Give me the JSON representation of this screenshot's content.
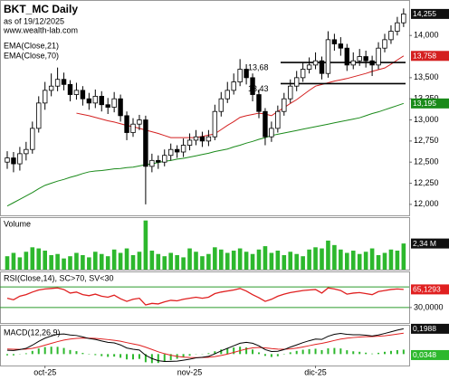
{
  "chart_data": [
    {
      "type": "candlestick",
      "title": "BKT_MC Daily",
      "subtitle": "as of 19/12/2025",
      "source": "www.wealth-lab.com",
      "categories": [
        null,
        null,
        null,
        null,
        null,
        null,
        "oct-25",
        null,
        null,
        null,
        null,
        null,
        null,
        null,
        null,
        null,
        null,
        null,
        null,
        null,
        null,
        null,
        null,
        null,
        null,
        null,
        null,
        null,
        null,
        "nov-25",
        null,
        null,
        null,
        null,
        null,
        null,
        null,
        null,
        null,
        null,
        null,
        null,
        null,
        null,
        null,
        null,
        null,
        null,
        null,
        "dic-25",
        null,
        null,
        null,
        null,
        null,
        null,
        null,
        null,
        null,
        null,
        null,
        null,
        null,
        null
      ],
      "candles": {
        "open": [
          12.5,
          12.55,
          12.48,
          12.6,
          12.65,
          12.9,
          13.2,
          13.35,
          13.4,
          13.48,
          13.42,
          13.3,
          13.35,
          13.25,
          13.2,
          13.28,
          13.18,
          13.15,
          13.25,
          13.05,
          12.85,
          12.95,
          13.0,
          12.45,
          12.52,
          12.5,
          12.58,
          12.65,
          12.62,
          12.7,
          12.76,
          12.8,
          12.75,
          12.8,
          13.1,
          13.25,
          13.35,
          13.45,
          13.6,
          13.5,
          13.3,
          13.1,
          12.8,
          12.9,
          13.1,
          13.25,
          13.4,
          13.5,
          13.6,
          13.65,
          13.7,
          13.55,
          13.95,
          13.9,
          13.85,
          13.65,
          13.7,
          13.75,
          13.7,
          13.65,
          13.85,
          13.95,
          14.05,
          14.15
        ],
        "high": [
          12.63,
          12.62,
          12.68,
          12.74,
          12.98,
          13.28,
          13.45,
          13.55,
          13.62,
          13.56,
          13.47,
          13.44,
          13.4,
          13.32,
          13.36,
          13.34,
          13.26,
          13.33,
          13.3,
          13.1,
          13.02,
          13.06,
          13.05,
          12.6,
          12.58,
          12.65,
          12.72,
          12.7,
          12.78,
          12.84,
          12.88,
          12.86,
          12.88,
          13.18,
          13.33,
          13.45,
          13.55,
          13.72,
          13.66,
          13.55,
          13.36,
          13.14,
          12.98,
          13.17,
          13.32,
          13.48,
          13.58,
          13.68,
          13.74,
          13.8,
          13.75,
          14.05,
          14.02,
          13.98,
          13.9,
          13.8,
          13.84,
          13.82,
          13.76,
          13.92,
          14.02,
          14.12,
          14.22,
          14.32
        ],
        "low": [
          12.42,
          12.38,
          12.4,
          12.52,
          12.6,
          12.85,
          13.12,
          13.28,
          13.34,
          13.35,
          13.22,
          13.24,
          13.17,
          13.12,
          13.14,
          13.1,
          13.07,
          13.09,
          12.98,
          12.76,
          12.8,
          12.88,
          12.0,
          12.38,
          12.42,
          12.45,
          12.52,
          12.55,
          12.56,
          12.64,
          12.7,
          12.68,
          12.69,
          12.76,
          13.04,
          13.2,
          13.3,
          13.4,
          13.42,
          13.22,
          13.02,
          12.7,
          12.74,
          12.85,
          13.05,
          13.2,
          13.34,
          13.45,
          13.55,
          13.6,
          13.48,
          13.5,
          13.82,
          13.76,
          13.58,
          13.6,
          13.64,
          13.62,
          13.52,
          13.6,
          13.8,
          13.9,
          14.0,
          14.1
        ],
        "close": [
          12.55,
          12.48,
          12.6,
          12.65,
          12.9,
          13.2,
          13.35,
          13.4,
          13.48,
          13.42,
          13.3,
          13.35,
          13.25,
          13.2,
          13.28,
          13.18,
          13.15,
          13.25,
          13.05,
          12.85,
          12.95,
          13.0,
          12.45,
          12.52,
          12.5,
          12.58,
          12.65,
          12.62,
          12.7,
          12.76,
          12.8,
          12.75,
          12.8,
          13.1,
          13.25,
          13.35,
          13.45,
          13.6,
          13.5,
          13.3,
          13.1,
          12.8,
          12.9,
          13.1,
          13.25,
          13.4,
          13.5,
          13.6,
          13.65,
          13.7,
          13.55,
          13.95,
          13.9,
          13.85,
          13.65,
          13.7,
          13.75,
          13.7,
          13.65,
          13.85,
          13.95,
          14.05,
          14.15,
          14.255
        ],
        "up_color": "#ffffff",
        "down_color": "#000000",
        "last_value_label": "14,255"
      },
      "series": [
        {
          "name": "EMA(Close,21)",
          "color": "#d42020",
          "last_value_label": "13,758",
          "values": [
            null,
            null,
            null,
            null,
            null,
            null,
            null,
            null,
            null,
            null,
            null,
            13.08,
            13.065,
            13.05,
            13.03,
            13.01,
            12.99,
            12.975,
            12.955,
            12.935,
            12.92,
            12.9,
            12.88,
            12.86,
            12.84,
            12.815,
            12.79,
            12.79,
            12.79,
            12.79,
            12.79,
            12.805,
            12.82,
            12.835,
            12.885,
            12.935,
            12.98,
            13.03,
            13.05,
            13.065,
            13.08,
            13.07,
            13.05,
            13.1,
            13.145,
            13.195,
            13.24,
            13.295,
            13.35,
            13.4,
            13.42,
            13.44,
            13.46,
            13.475,
            13.49,
            13.51,
            13.53,
            13.55,
            13.575,
            13.595,
            13.615,
            13.66,
            13.71,
            13.758
          ]
        },
        {
          "name": "EMA(Close,70)",
          "color": "#1a8a1a",
          "last_value_label": "13,195",
          "values": [
            11.98,
            12.02,
            12.06,
            12.1,
            12.14,
            12.185,
            12.225,
            12.25,
            12.275,
            12.295,
            12.32,
            12.34,
            12.365,
            12.385,
            12.395,
            12.4,
            12.41,
            12.42,
            12.425,
            12.435,
            12.44,
            12.455,
            12.47,
            12.48,
            12.495,
            12.51,
            12.52,
            12.535,
            12.545,
            12.56,
            12.575,
            12.59,
            12.605,
            12.625,
            12.64,
            12.655,
            12.68,
            12.7,
            12.725,
            12.745,
            12.77,
            12.79,
            12.815,
            12.83,
            12.845,
            12.86,
            12.875,
            12.89,
            12.905,
            12.92,
            12.935,
            12.95,
            12.965,
            12.98,
            12.995,
            13.01,
            13.025,
            13.05,
            13.075,
            13.095,
            13.12,
            13.145,
            13.17,
            13.195
          ]
        }
      ],
      "levels": [
        {
          "value": 13.68,
          "label": "13,68"
        },
        {
          "value": 13.43,
          "label": "13,43"
        }
      ],
      "ylim": [
        11.87,
        14.42
      ],
      "yticks": [
        {
          "value": 12,
          "label": "12,000"
        },
        {
          "value": 12.25,
          "label": "12,250"
        },
        {
          "value": 12.5,
          "label": "12,500"
        },
        {
          "value": 12.75,
          "label": "12,750"
        },
        {
          "value": 13,
          "label": "13,000"
        },
        {
          "value": 13.25,
          "label": "13,250"
        },
        {
          "value": 13.5,
          "label": "13,500"
        },
        {
          "value": 14,
          "label": "14,000"
        }
      ]
    },
    {
      "type": "bar",
      "title": "Volume",
      "color": "#2db82d",
      "ylim": [
        0,
        4.7
      ],
      "last_value_label": "2,34 M",
      "values": [
        1.2,
        1.5,
        1.1,
        1.6,
        2.0,
        1.9,
        1.7,
        1.3,
        1.4,
        1.0,
        1.2,
        1.5,
        1.3,
        1.1,
        1.6,
        1.4,
        1.2,
        1.8,
        1.5,
        1.9,
        1.3,
        1.6,
        4.4,
        1.7,
        1.4,
        1.2,
        1.5,
        1.3,
        1.1,
        1.9,
        1.6,
        1.2,
        1.4,
        2.0,
        1.8,
        1.5,
        1.7,
        1.9,
        1.6,
        1.4,
        1.8,
        2.1,
        1.5,
        1.7,
        1.3,
        1.6,
        1.4,
        1.2,
        1.8,
        2.0,
        1.9,
        2.6,
        2.2,
        1.8,
        1.5,
        1.7,
        1.4,
        1.6,
        1.9,
        1.3,
        1.5,
        1.8,
        1.7,
        2.34
      ]
    },
    {
      "type": "line",
      "title": "RSI(Close,14), SC>70, SV<30",
      "ylim": [
        0,
        100
      ],
      "yticks": [
        {
          "value": 30,
          "label": "30,0000"
        }
      ],
      "levels": [
        70,
        30
      ],
      "level_color": "#2a9a2a",
      "series": [
        {
          "color": "#e02020",
          "last_value_label": "65,1293",
          "values": [
            48,
            45,
            52,
            55,
            60,
            64,
            66,
            67,
            68,
            65,
            58,
            60,
            55,
            53,
            56,
            52,
            50,
            54,
            47,
            42,
            46,
            48,
            35,
            38,
            37,
            41,
            44,
            43,
            46,
            48,
            50,
            48,
            50,
            57,
            60,
            62,
            64,
            67,
            62,
            55,
            49,
            42,
            46,
            52,
            56,
            59,
            61,
            63,
            64,
            65,
            58,
            68,
            66,
            63,
            56,
            58,
            59,
            57,
            55,
            61,
            63,
            65,
            66,
            65.1293
          ]
        }
      ]
    },
    {
      "type": "macd",
      "title": "MACD(12,26,9)",
      "ylim": [
        -0.09,
        0.23
      ],
      "macd": {
        "color": "#000000",
        "last_value_label": "0,1988",
        "values": [
          0.03,
          0.028,
          0.035,
          0.045,
          0.07,
          0.1,
          0.125,
          0.142,
          0.155,
          0.158,
          0.15,
          0.146,
          0.135,
          0.122,
          0.115,
          0.103,
          0.092,
          0.088,
          0.072,
          0.048,
          0.038,
          0.032,
          -0.01,
          -0.035,
          -0.052,
          -0.058,
          -0.057,
          -0.055,
          -0.048,
          -0.04,
          -0.03,
          -0.025,
          -0.018,
          0.002,
          0.025,
          0.045,
          0.065,
          0.085,
          0.092,
          0.085,
          0.065,
          0.035,
          0.02,
          0.022,
          0.035,
          0.055,
          0.072,
          0.09,
          0.105,
          0.118,
          0.115,
          0.14,
          0.155,
          0.162,
          0.155,
          0.152,
          0.152,
          0.148,
          0.142,
          0.15,
          0.162,
          0.175,
          0.188,
          0.1988
        ]
      },
      "signal": {
        "color": "#e02020",
        "values": [
          0.04,
          0.038,
          0.037,
          0.039,
          0.045,
          0.056,
          0.07,
          0.084,
          0.098,
          0.11,
          0.118,
          0.123,
          0.126,
          0.125,
          0.123,
          0.119,
          0.114,
          0.108,
          0.101,
          0.09,
          0.08,
          0.07,
          0.054,
          0.036,
          0.018,
          0.003,
          -0.009,
          -0.018,
          -0.024,
          -0.027,
          -0.028,
          -0.027,
          -0.025,
          -0.02,
          -0.011,
          0.0,
          0.013,
          0.027,
          0.04,
          0.049,
          0.052,
          0.049,
          0.043,
          0.039,
          0.038,
          0.041,
          0.047,
          0.056,
          0.066,
          0.076,
          0.084,
          0.095,
          0.107,
          0.118,
          0.125,
          0.13,
          0.134,
          0.137,
          0.138,
          0.14,
          0.144,
          0.15,
          0.157,
          0.164
        ]
      },
      "histogram": {
        "color": "#2db82d",
        "last_value_label": "0,0348",
        "values": [
          -0.01,
          -0.01,
          -0.002,
          0.006,
          0.025,
          0.044,
          0.055,
          0.058,
          0.057,
          0.048,
          0.032,
          0.023,
          0.009,
          -0.003,
          -0.008,
          -0.016,
          -0.022,
          -0.02,
          -0.029,
          -0.042,
          -0.042,
          -0.038,
          -0.064,
          -0.071,
          -0.07,
          -0.061,
          -0.048,
          -0.037,
          -0.024,
          -0.013,
          -0.002,
          0.002,
          0.007,
          0.022,
          0.036,
          0.045,
          0.052,
          0.058,
          0.052,
          0.036,
          0.013,
          -0.014,
          -0.023,
          -0.017,
          -0.003,
          0.014,
          0.025,
          0.034,
          0.039,
          0.042,
          0.031,
          0.045,
          0.048,
          0.044,
          0.03,
          0.022,
          0.018,
          0.011,
          0.004,
          0.01,
          0.018,
          0.025,
          0.031,
          0.0348
        ]
      }
    }
  ]
}
